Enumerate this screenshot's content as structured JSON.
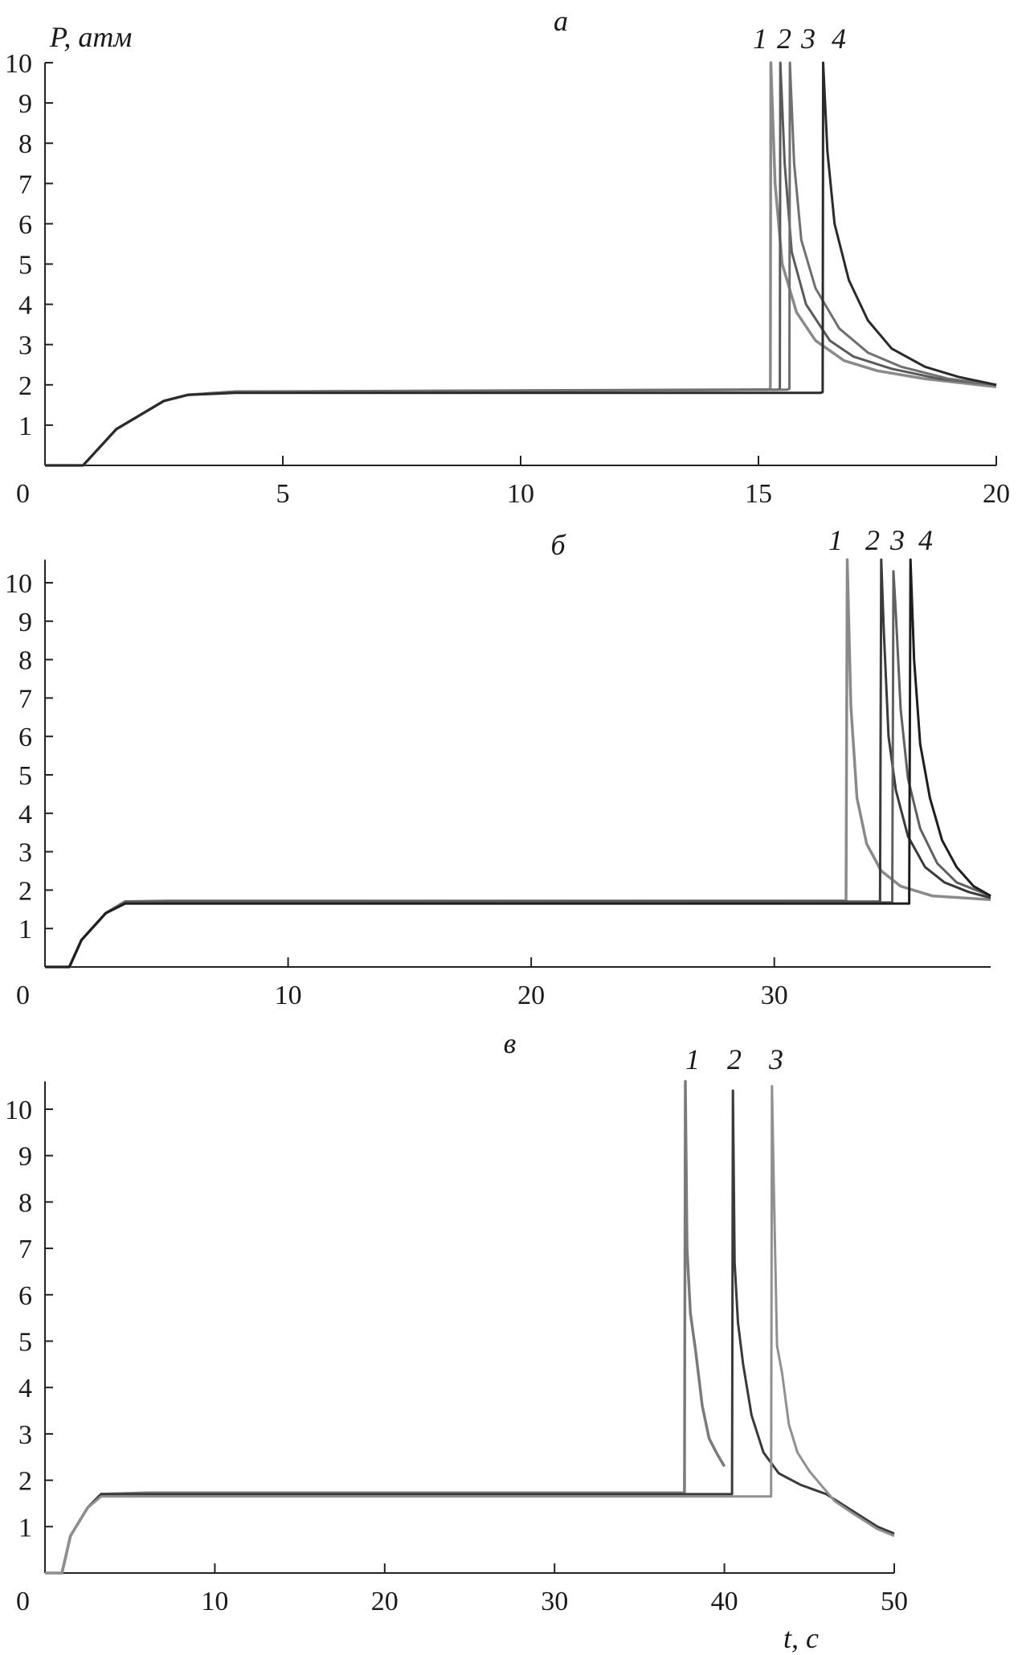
{
  "figure": {
    "y_label": "P, атм",
    "x_label": "t, с"
  },
  "chart_data": [
    {
      "type": "line",
      "panel_label": "а",
      "xlim": [
        0,
        20
      ],
      "ylim": [
        0,
        10
      ],
      "xticks": [
        0,
        5,
        10,
        15,
        20
      ],
      "yticks": [
        1,
        2,
        3,
        4,
        5,
        6,
        7,
        8,
        9,
        10
      ],
      "ylabel": "P, атм",
      "xlabel": "",
      "grid": false,
      "series": [
        {
          "name": "1",
          "color": "#8a8a8a",
          "points": [
            [
              0,
              0
            ],
            [
              0.8,
              0
            ],
            [
              1.5,
              0.9
            ],
            [
              2.5,
              1.6
            ],
            [
              3,
              1.75
            ],
            [
              4,
              1.83
            ],
            [
              15.2,
              1.88
            ],
            [
              15.25,
              1.9
            ],
            [
              15.26,
              10
            ],
            [
              15.35,
              7
            ],
            [
              15.5,
              5
            ],
            [
              15.8,
              3.8
            ],
            [
              16.2,
              3.1
            ],
            [
              16.8,
              2.6
            ],
            [
              17.5,
              2.35
            ],
            [
              18.5,
              2.15
            ],
            [
              20,
              1.95
            ]
          ]
        },
        {
          "name": "2",
          "color": "#5a5a5a",
          "points": [
            [
              0,
              0
            ],
            [
              0.8,
              0
            ],
            [
              1.5,
              0.9
            ],
            [
              2.5,
              1.6
            ],
            [
              3,
              1.75
            ],
            [
              4,
              1.83
            ],
            [
              15.4,
              1.88
            ],
            [
              15.45,
              1.9
            ],
            [
              15.46,
              10
            ],
            [
              15.55,
              7.5
            ],
            [
              15.7,
              5.3
            ],
            [
              16,
              4
            ],
            [
              16.5,
              3.1
            ],
            [
              17,
              2.7
            ],
            [
              17.8,
              2.4
            ],
            [
              18.8,
              2.15
            ],
            [
              20,
              2.0
            ]
          ]
        },
        {
          "name": "3",
          "color": "#707070",
          "points": [
            [
              0,
              0
            ],
            [
              0.8,
              0
            ],
            [
              1.5,
              0.9
            ],
            [
              2.5,
              1.6
            ],
            [
              3,
              1.75
            ],
            [
              4,
              1.83
            ],
            [
              15.6,
              1.88
            ],
            [
              15.65,
              1.9
            ],
            [
              15.66,
              10
            ],
            [
              15.75,
              7.5
            ],
            [
              15.9,
              5.6
            ],
            [
              16.2,
              4.4
            ],
            [
              16.7,
              3.4
            ],
            [
              17.3,
              2.8
            ],
            [
              18,
              2.45
            ],
            [
              19,
              2.15
            ],
            [
              20,
              2.0
            ]
          ]
        },
        {
          "name": "4",
          "color": "#2a2a2a",
          "points": [
            [
              0,
              0
            ],
            [
              0.8,
              0
            ],
            [
              1.5,
              0.9
            ],
            [
              2.5,
              1.6
            ],
            [
              3,
              1.75
            ],
            [
              4,
              1.8
            ],
            [
              16.3,
              1.8
            ],
            [
              16.35,
              1.82
            ],
            [
              16.36,
              10
            ],
            [
              16.45,
              7.8
            ],
            [
              16.6,
              6
            ],
            [
              16.9,
              4.6
            ],
            [
              17.3,
              3.6
            ],
            [
              17.8,
              2.9
            ],
            [
              18.5,
              2.45
            ],
            [
              19.2,
              2.2
            ],
            [
              20,
              2.0
            ]
          ]
        }
      ]
    },
    {
      "type": "line",
      "panel_label": "б",
      "xlim": [
        0,
        38.9
      ],
      "ylim": [
        0,
        10.6
      ],
      "xticks": [
        0,
        10,
        20,
        30
      ],
      "yticks": [
        1,
        2,
        3,
        4,
        5,
        6,
        7,
        8,
        9,
        10
      ],
      "xlabel": "",
      "ylabel": "",
      "grid": false,
      "series": [
        {
          "name": "1",
          "color": "#8a8a8a",
          "points": [
            [
              0,
              0
            ],
            [
              1,
              0
            ],
            [
              1.5,
              0.7
            ],
            [
              2.5,
              1.4
            ],
            [
              3.3,
              1.7
            ],
            [
              5,
              1.72
            ],
            [
              32.95,
              1.72
            ],
            [
              33,
              10.6
            ],
            [
              33.15,
              6.8
            ],
            [
              33.4,
              4.4
            ],
            [
              33.8,
              3.2
            ],
            [
              34.4,
              2.5
            ],
            [
              35.2,
              2.1
            ],
            [
              36.5,
              1.85
            ],
            [
              38.9,
              1.75
            ]
          ]
        },
        {
          "name": "2",
          "color": "#3a3a3a",
          "points": [
            [
              0,
              0
            ],
            [
              1,
              0
            ],
            [
              1.5,
              0.7
            ],
            [
              2.5,
              1.4
            ],
            [
              3.3,
              1.7
            ],
            [
              5,
              1.7
            ],
            [
              34.35,
              1.7
            ],
            [
              34.4,
              10.6
            ],
            [
              34.5,
              8.8
            ],
            [
              34.7,
              6
            ],
            [
              35,
              4.6
            ],
            [
              35.5,
              3.4
            ],
            [
              36.2,
              2.6
            ],
            [
              37,
              2.2
            ],
            [
              38,
              1.95
            ],
            [
              38.9,
              1.8
            ]
          ]
        },
        {
          "name": "3",
          "color": "#606060",
          "points": [
            [
              0,
              0
            ],
            [
              1,
              0
            ],
            [
              1.5,
              0.7
            ],
            [
              2.5,
              1.4
            ],
            [
              3.3,
              1.7
            ],
            [
              5,
              1.7
            ],
            [
              34.85,
              1.68
            ],
            [
              34.9,
              10.3
            ],
            [
              35.0,
              9.2
            ],
            [
              35.2,
              6.7
            ],
            [
              35.5,
              4.9
            ],
            [
              36,
              3.6
            ],
            [
              36.7,
              2.7
            ],
            [
              37.5,
              2.2
            ],
            [
              38.9,
              1.85
            ]
          ]
        },
        {
          "name": "4",
          "color": "#1e1e1e",
          "points": [
            [
              0,
              0
            ],
            [
              1,
              0
            ],
            [
              1.5,
              0.7
            ],
            [
              2.5,
              1.4
            ],
            [
              3.3,
              1.65
            ],
            [
              5,
              1.65
            ],
            [
              35.55,
              1.65
            ],
            [
              35.6,
              10.6
            ],
            [
              35.75,
              8
            ],
            [
              36,
              5.8
            ],
            [
              36.4,
              4.4
            ],
            [
              36.9,
              3.3
            ],
            [
              37.5,
              2.6
            ],
            [
              38.2,
              2.1
            ],
            [
              38.9,
              1.85
            ]
          ]
        }
      ]
    },
    {
      "type": "line",
      "panel_label": "в",
      "xlim": [
        0,
        50
      ],
      "ylim": [
        0,
        10.6
      ],
      "xticks": [
        0,
        10,
        20,
        30,
        40,
        50
      ],
      "yticks": [
        1,
        2,
        3,
        4,
        5,
        6,
        7,
        8,
        9,
        10
      ],
      "xlabel": "t, с",
      "ylabel": "",
      "grid": false,
      "series": [
        {
          "name": "1",
          "color": "#7a7a7a",
          "points": [
            [
              0,
              0
            ],
            [
              1,
              0
            ],
            [
              1.5,
              0.8
            ],
            [
              2.5,
              1.4
            ],
            [
              3.3,
              1.7
            ],
            [
              6,
              1.73
            ],
            [
              37.65,
              1.73
            ],
            [
              37.7,
              10.6
            ],
            [
              37.8,
              7
            ],
            [
              38,
              5.6
            ],
            [
              38.3,
              4.8
            ],
            [
              38.7,
              3.6
            ],
            [
              39.1,
              2.9
            ],
            [
              39.6,
              2.55
            ],
            [
              40,
              2.3
            ]
          ]
        },
        {
          "name": "2",
          "color": "#3a3a3a",
          "points": [
            [
              0,
              0
            ],
            [
              1,
              0
            ],
            [
              1.5,
              0.8
            ],
            [
              2.5,
              1.4
            ],
            [
              3.3,
              1.7
            ],
            [
              6,
              1.7
            ],
            [
              40.45,
              1.7
            ],
            [
              40.5,
              10.4
            ],
            [
              40.6,
              6.7
            ],
            [
              40.8,
              5.4
            ],
            [
              41.1,
              4.5
            ],
            [
              41.6,
              3.4
            ],
            [
              42.3,
              2.6
            ],
            [
              43.2,
              2.15
            ],
            [
              44.5,
              1.9
            ],
            [
              46,
              1.7
            ],
            [
              47.5,
              1.35
            ],
            [
              49,
              1.0
            ],
            [
              50,
              0.85
            ]
          ]
        },
        {
          "name": "3",
          "color": "#909090",
          "points": [
            [
              0,
              0
            ],
            [
              1,
              0
            ],
            [
              1.5,
              0.8
            ],
            [
              2.5,
              1.4
            ],
            [
              3.3,
              1.65
            ],
            [
              6,
              1.65
            ],
            [
              42.75,
              1.65
            ],
            [
              42.8,
              10.5
            ],
            [
              42.9,
              8.5
            ],
            [
              43.1,
              4.9
            ],
            [
              43.4,
              4.3
            ],
            [
              43.8,
              3.2
            ],
            [
              44.3,
              2.6
            ],
            [
              45,
              2.2
            ],
            [
              45.8,
              1.85
            ],
            [
              46.5,
              1.55
            ],
            [
              47.5,
              1.3
            ],
            [
              49,
              0.95
            ],
            [
              50,
              0.8
            ]
          ]
        }
      ]
    }
  ]
}
